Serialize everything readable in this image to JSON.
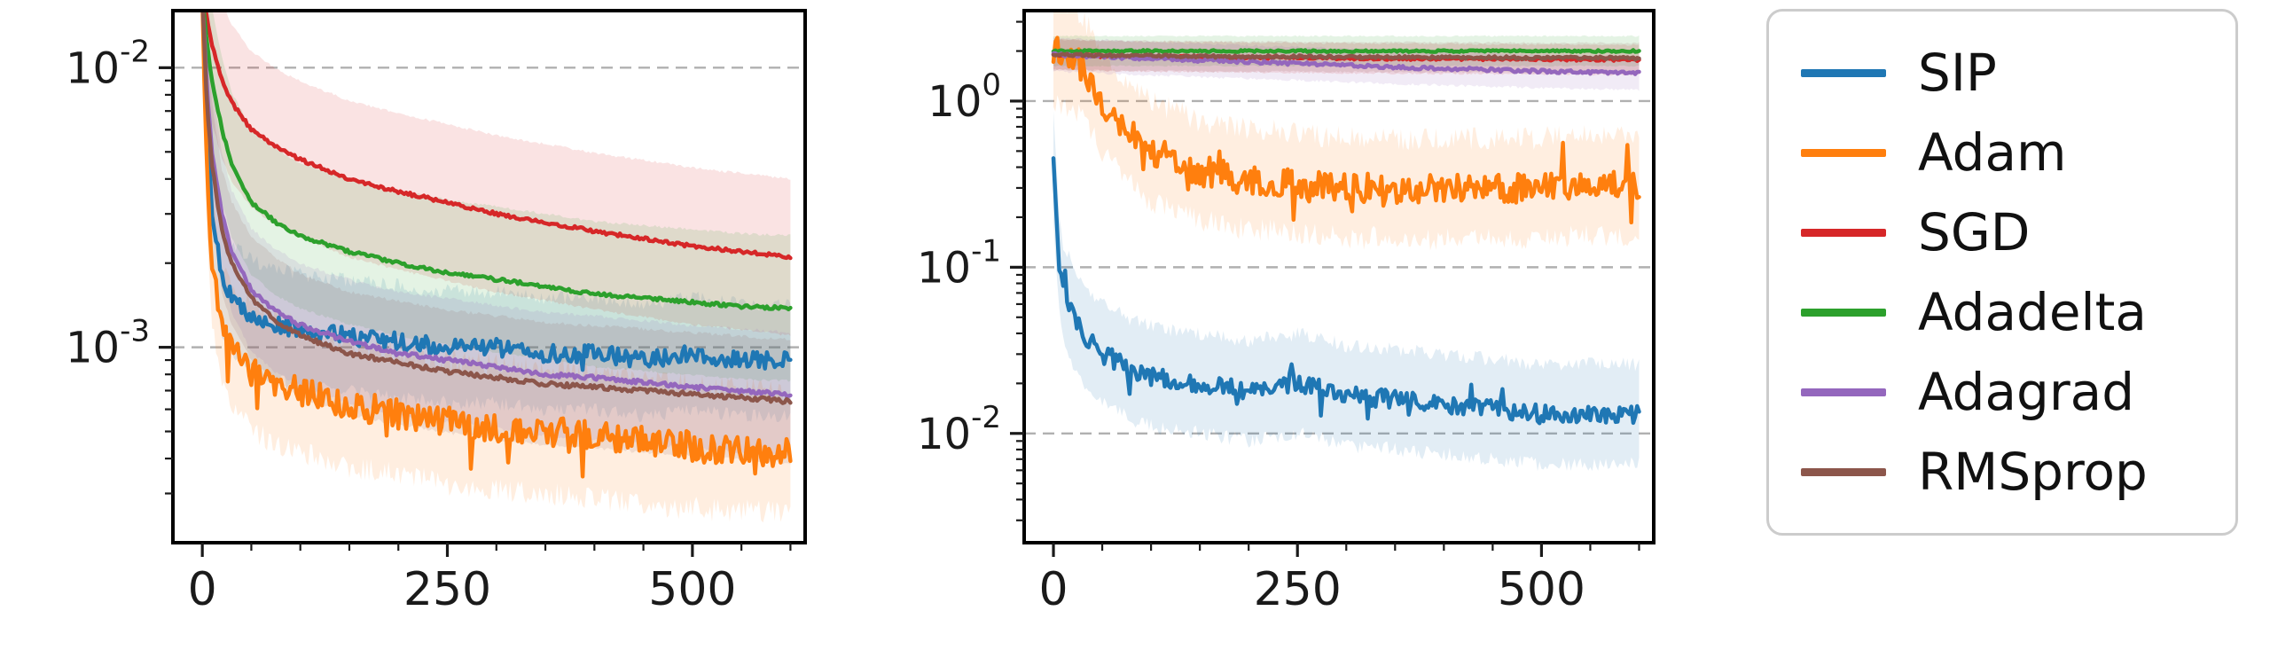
{
  "figure": {
    "background": "#ffffff",
    "description": "Two log-scale optimization curves with shaded std bands comparing six optimizers"
  },
  "legend": {
    "border_color": "#cccccc",
    "entries": [
      {
        "label": "SIP",
        "color": "#1f77b4"
      },
      {
        "label": "Adam",
        "color": "#ff7f0e"
      },
      {
        "label": "SGD",
        "color": "#d62728"
      },
      {
        "label": "Adadelta",
        "color": "#2ca02c"
      },
      {
        "label": "Adagrad",
        "color": "#9467bd"
      },
      {
        "label": "RMSprop",
        "color": "#8c564b"
      }
    ]
  },
  "chart_data": [
    {
      "type": "line",
      "title": "",
      "xlabel": "",
      "ylabel": "",
      "y_scale": "log",
      "xlim": [
        -30,
        615
      ],
      "ylim": [
        0.0002,
        0.016
      ],
      "x_ticks": [
        0,
        250,
        500
      ],
      "x_minor_step": 50,
      "y_tick_labels": [
        "10^-2",
        "10^-3"
      ],
      "grid": "dashed horizontal lines at decades",
      "band_opacity": 0.13,
      "x_keypoints": [
        0,
        5,
        10,
        20,
        30,
        50,
        75,
        100,
        150,
        200,
        250,
        300,
        350,
        400,
        450,
        500,
        550,
        600
      ],
      "series": [
        {
          "name": "SIP",
          "color": "#1f77b4",
          "jitter": 0.032,
          "band": 0.2,
          "spike": 0.02,
          "y": [
            0.018,
            0.006,
            0.003,
            0.0018,
            0.0015,
            0.0013,
            0.0012,
            0.00115,
            0.0011,
            0.00105,
            0.001,
            0.001,
            0.00095,
            0.00095,
            0.0009,
            0.00095,
            0.0009,
            0.0009
          ]
        },
        {
          "name": "Adam",
          "color": "#ff7f0e",
          "jitter": 0.055,
          "band": 0.22,
          "spike": 0.06,
          "spike_dir": -1,
          "y": [
            0.018,
            0.004,
            0.002,
            0.0012,
            0.001,
            0.00085,
            0.00075,
            0.0007,
            0.00062,
            0.00058,
            0.00054,
            0.00052,
            0.0005,
            0.00048,
            0.00046,
            0.00044,
            0.00043,
            0.00042
          ]
        },
        {
          "name": "SGD",
          "color": "#d62728",
          "jitter": 0.006,
          "band": 0.28,
          "spike": 0,
          "y": [
            0.018,
            0.015,
            0.012,
            0.009,
            0.0075,
            0.006,
            0.0052,
            0.0047,
            0.004,
            0.0036,
            0.0033,
            0.003,
            0.0028,
            0.0026,
            0.00245,
            0.0023,
            0.0022,
            0.0021
          ]
        },
        {
          "name": "Adadelta",
          "color": "#2ca02c",
          "jitter": 0.006,
          "band": 0.26,
          "spike": 0,
          "y": [
            0.018,
            0.012,
            0.009,
            0.006,
            0.0045,
            0.0033,
            0.0028,
            0.0025,
            0.0022,
            0.002,
            0.00185,
            0.00175,
            0.00165,
            0.00155,
            0.0015,
            0.00145,
            0.0014,
            0.00138
          ]
        },
        {
          "name": "Adagrad",
          "color": "#9467bd",
          "jitter": 0.008,
          "band": 0.22,
          "spike": 0,
          "y": [
            0.018,
            0.008,
            0.005,
            0.003,
            0.0022,
            0.0016,
            0.00135,
            0.0012,
            0.00105,
            0.00095,
            0.0009,
            0.00085,
            0.0008,
            0.00078,
            0.00075,
            0.00072,
            0.0007,
            0.00068
          ]
        },
        {
          "name": "RMSprop",
          "color": "#8c564b",
          "jitter": 0.008,
          "band": 0.22,
          "spike": 0,
          "y": [
            0.018,
            0.007,
            0.0045,
            0.0026,
            0.002,
            0.0015,
            0.00125,
            0.0011,
            0.00095,
            0.00088,
            0.00082,
            0.00078,
            0.00074,
            0.00072,
            0.0007,
            0.00068,
            0.00066,
            0.00064
          ]
        }
      ]
    },
    {
      "type": "line",
      "title": "",
      "xlabel": "",
      "ylabel": "",
      "y_scale": "log",
      "xlim": [
        -30,
        615
      ],
      "ylim": [
        0.0022,
        3.5
      ],
      "x_ticks": [
        0,
        250,
        500
      ],
      "x_minor_step": 50,
      "y_tick_labels": [
        "10^0",
        "10^-1",
        "10^-2"
      ],
      "grid": "dashed horizontal lines at decades",
      "band_opacity": 0.13,
      "x_keypoints": [
        0,
        5,
        10,
        20,
        30,
        50,
        75,
        100,
        150,
        200,
        250,
        300,
        350,
        400,
        450,
        500,
        550,
        600
      ],
      "series": [
        {
          "name": "SIP",
          "color": "#1f77b4",
          "jitter": 0.055,
          "band": 0.3,
          "spike": 0.05,
          "y": [
            0.4,
            0.12,
            0.07,
            0.05,
            0.04,
            0.03,
            0.025,
            0.022,
            0.02,
            0.018,
            0.02,
            0.017,
            0.016,
            0.015,
            0.014,
            0.013,
            0.013,
            0.013
          ]
        },
        {
          "name": "Adam",
          "color": "#ff7f0e",
          "jitter": 0.09,
          "band": 0.3,
          "spike": 0.06,
          "y": [
            2.0,
            2.0,
            1.9,
            1.8,
            1.6,
            1.0,
            0.65,
            0.5,
            0.38,
            0.34,
            0.32,
            0.3,
            0.3,
            0.29,
            0.3,
            0.3,
            0.31,
            0.3
          ]
        },
        {
          "name": "SGD",
          "color": "#d62728",
          "jitter": 0.008,
          "band": 0.09,
          "spike": 0,
          "y": [
            1.9,
            1.9,
            1.9,
            1.9,
            1.88,
            1.87,
            1.86,
            1.85,
            1.84,
            1.83,
            1.82,
            1.81,
            1.8,
            1.8,
            1.79,
            1.78,
            1.78,
            1.77
          ]
        },
        {
          "name": "Adadelta",
          "color": "#2ca02c",
          "jitter": 0.006,
          "band": 0.09,
          "spike": 0,
          "y": [
            2.0,
            2.0,
            2.0,
            2.0,
            2.0,
            2.0,
            2.0,
            2.0,
            2.0,
            2.0,
            2.0,
            2.0,
            2.0,
            2.0,
            2.0,
            2.0,
            2.0,
            2.0
          ]
        },
        {
          "name": "Adagrad",
          "color": "#9467bd",
          "jitter": 0.01,
          "band": 0.1,
          "spike": 0,
          "y": [
            1.9,
            1.9,
            1.89,
            1.88,
            1.87,
            1.85,
            1.83,
            1.8,
            1.76,
            1.72,
            1.68,
            1.64,
            1.6,
            1.57,
            1.54,
            1.51,
            1.49,
            1.47
          ]
        },
        {
          "name": "RMSprop",
          "color": "#8c564b",
          "jitter": 0.008,
          "band": 0.09,
          "spike": 0,
          "y": [
            1.9,
            1.9,
            1.9,
            1.89,
            1.89,
            1.88,
            1.87,
            1.87,
            1.86,
            1.85,
            1.85,
            1.84,
            1.84,
            1.83,
            1.83,
            1.82,
            1.82,
            1.81
          ]
        }
      ]
    }
  ]
}
